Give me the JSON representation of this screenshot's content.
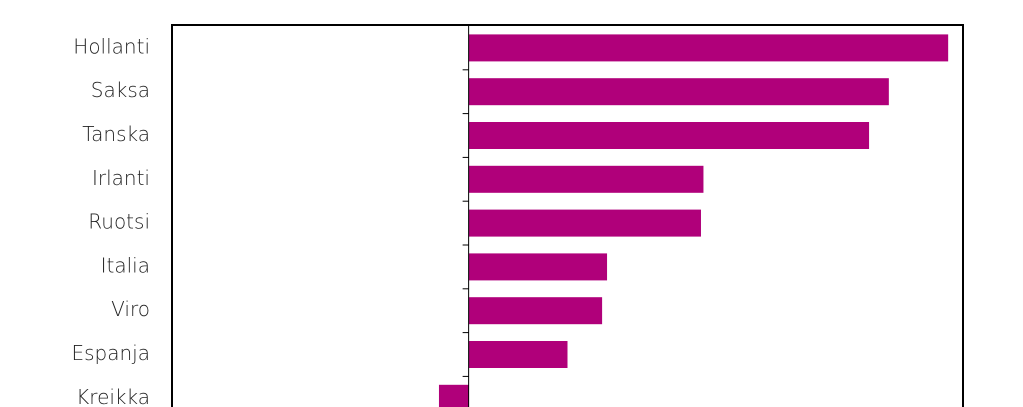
{
  "chart_data": {
    "type": "hbar",
    "categories": [
      "Hollanti",
      "Saksa",
      "Tanska",
      "Irlanti",
      "Ruotsi",
      "Italia",
      "Viro",
      "Espanja",
      "Kreikka"
    ],
    "values": [
      9.7,
      8.5,
      8.1,
      4.75,
      4.7,
      2.8,
      2.7,
      2.0,
      -0.6
    ],
    "color": "#b0007a",
    "xlim": [
      -6,
      10
    ]
  }
}
